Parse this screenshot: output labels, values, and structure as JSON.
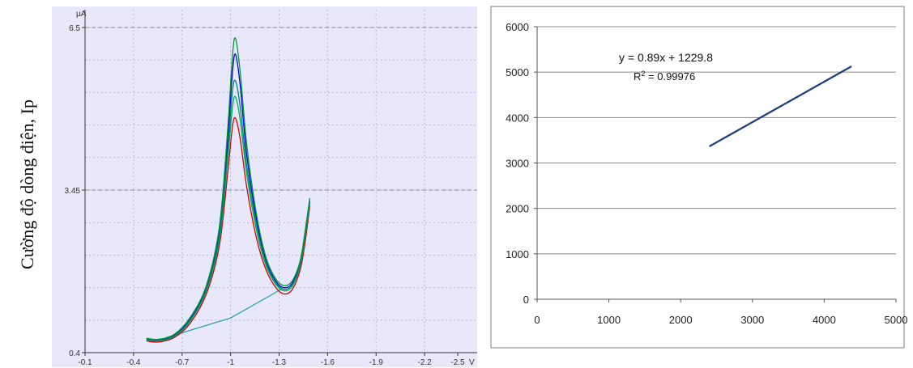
{
  "figure": {
    "y_label": "Cường độ dòng điện, Ip"
  },
  "chart_data": [
    {
      "type": "line",
      "x_unit": "V",
      "y_unit": "µA",
      "x_ticks": [
        "-0.1",
        "-0.4",
        "-0.7",
        "-1",
        "-1.3",
        "-1.6",
        "-1.9",
        "-2.2",
        "-2.5"
      ],
      "y_ticks": [
        "0.4",
        "3.45",
        "6.5"
      ],
      "xlim": [
        -0.1,
        -2.5
      ],
      "ylim": [
        0.4,
        6.5
      ],
      "grid": true,
      "colors": {
        "background": "#e8e8fa",
        "grid": "#b8b8c8",
        "dashed_reference": "#888888"
      },
      "series": [
        {
          "color": "#d00000",
          "peak": 4.8,
          "x": [
            -0.48,
            -0.55,
            -0.65,
            -0.75,
            -0.85,
            -0.93,
            -0.98,
            -1.01,
            -1.03,
            -1.06,
            -1.1,
            -1.16,
            -1.22,
            -1.28,
            -1.33,
            -1.38,
            -1.43,
            -1.46,
            -1.49
          ],
          "y": [
            0.62,
            0.6,
            0.68,
            0.95,
            1.5,
            2.4,
            3.7,
            4.6,
            4.8,
            4.4,
            3.5,
            2.55,
            1.95,
            1.62,
            1.5,
            1.58,
            1.95,
            2.45,
            3.15
          ]
        },
        {
          "color": "#00b050",
          "peak": 5.2,
          "x": [
            -0.48,
            -0.55,
            -0.65,
            -0.75,
            -0.85,
            -0.93,
            -0.98,
            -1.01,
            -1.03,
            -1.06,
            -1.1,
            -1.16,
            -1.22,
            -1.28,
            -1.33,
            -1.38,
            -1.43,
            -1.46,
            -1.49
          ],
          "y": [
            0.64,
            0.62,
            0.7,
            0.99,
            1.56,
            2.5,
            3.95,
            4.95,
            5.2,
            4.75,
            3.75,
            2.7,
            2.03,
            1.68,
            1.56,
            1.64,
            2.02,
            2.55,
            3.2
          ]
        },
        {
          "color": "#0000e0",
          "peak": 6.0,
          "x": [
            -0.48,
            -0.55,
            -0.65,
            -0.75,
            -0.85,
            -0.93,
            -0.98,
            -1.01,
            -1.03,
            -1.06,
            -1.1,
            -1.16,
            -1.22,
            -1.28,
            -1.33,
            -1.38,
            -1.43,
            -1.46,
            -1.49
          ],
          "y": [
            0.66,
            0.64,
            0.72,
            1.03,
            1.62,
            2.65,
            4.3,
            5.6,
            6.0,
            5.4,
            4.1,
            2.9,
            2.12,
            1.74,
            1.62,
            1.7,
            2.08,
            2.62,
            3.25
          ]
        },
        {
          "color": "#008080",
          "peak": 5.5,
          "x": [
            -0.48,
            -0.55,
            -0.65,
            -0.75,
            -0.85,
            -0.93,
            -0.98,
            -1.01,
            -1.03,
            -1.06,
            -1.1,
            -1.16,
            -1.22,
            -1.28,
            -1.33,
            -1.38,
            -1.43,
            -1.46,
            -1.49
          ],
          "y": [
            0.65,
            0.63,
            0.71,
            1.01,
            1.59,
            2.58,
            4.1,
            5.25,
            5.5,
            5.0,
            3.9,
            2.8,
            2.08,
            1.71,
            1.59,
            1.67,
            2.05,
            2.58,
            3.22
          ]
        },
        {
          "color": "#009933",
          "peak": 6.3,
          "x": [
            -0.48,
            -0.55,
            -0.65,
            -0.75,
            -0.85,
            -0.93,
            -0.98,
            -1.01,
            -1.03,
            -1.06,
            -1.1,
            -1.16,
            -1.22,
            -1.28,
            -1.33,
            -1.38,
            -1.43,
            -1.46,
            -1.49
          ],
          "y": [
            0.67,
            0.65,
            0.74,
            1.06,
            1.66,
            2.75,
            4.5,
            5.9,
            6.3,
            5.65,
            4.3,
            3.0,
            2.18,
            1.78,
            1.66,
            1.74,
            2.12,
            2.66,
            3.3
          ]
        }
      ],
      "baseline": {
        "color": "#20a0a0",
        "x": [
          -0.6,
          -1.0,
          -1.32
        ],
        "y": [
          0.68,
          1.05,
          1.6
        ]
      }
    },
    {
      "type": "line",
      "x_ticks": [
        "0",
        "1000",
        "2000",
        "3000",
        "4000",
        "5000"
      ],
      "y_ticks": [
        "0",
        "1000",
        "2000",
        "3000",
        "4000",
        "5000",
        "6000"
      ],
      "xlim": [
        0,
        5000
      ],
      "ylim": [
        0,
        6000
      ],
      "grid": true,
      "annotation": {
        "equation": "y = 0.89x + 1229.8",
        "r2_prefix": "R",
        "r2_sup": "2",
        "r2_value": " = 0.99976"
      },
      "series": [
        {
          "color": "#1f3f7a",
          "x": [
            2400,
            2700,
            3000,
            3300,
            3600,
            3950,
            4380
          ],
          "y": [
            3365,
            3632,
            3899,
            4166,
            4434,
            4745,
            5128
          ]
        }
      ]
    }
  ]
}
